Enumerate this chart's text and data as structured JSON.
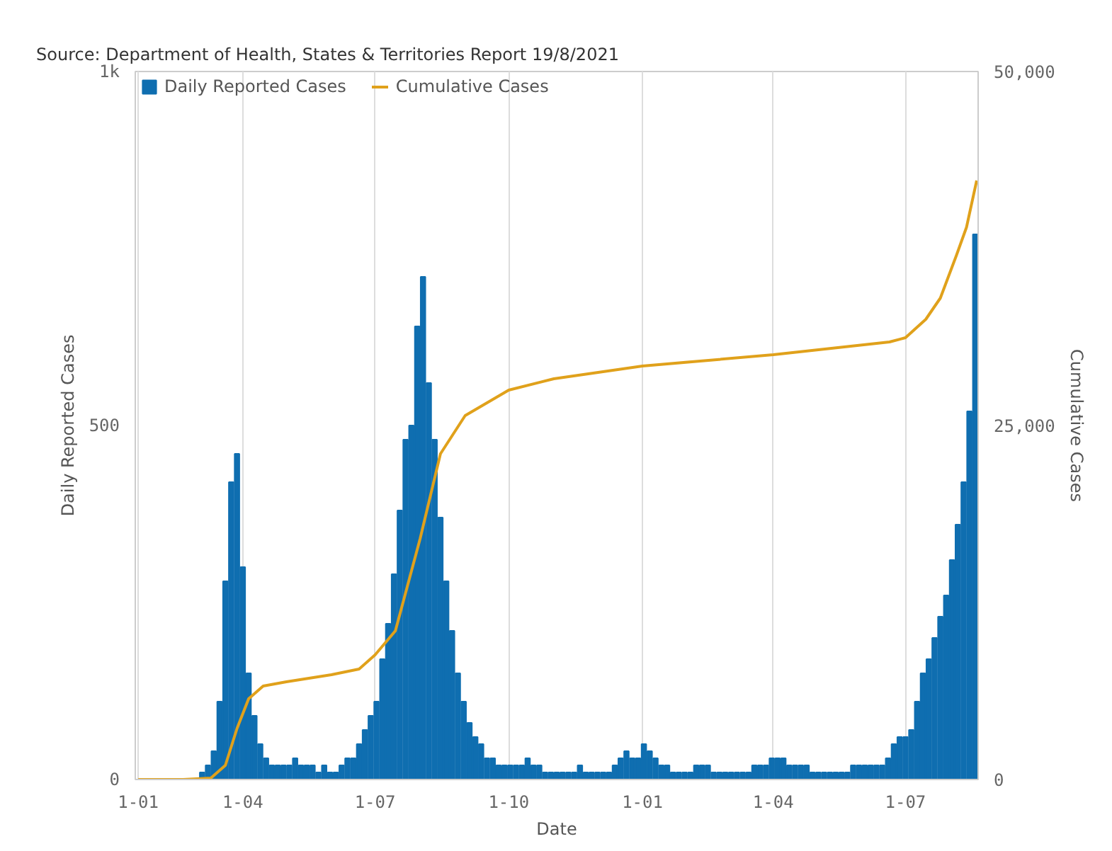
{
  "chart_data": {
    "type": "bar",
    "annotations": [
      "Source: Department of Health, States & Territories Report 19/8/2021"
    ],
    "xlabel": "Date",
    "ylabel": "Daily Reported Cases",
    "y2label": "Cumulative Cases",
    "xlim": [
      "2020-01-18",
      "2021-08-20"
    ],
    "xticks": [
      {
        "value": "2020-01-20",
        "label": "1-01"
      },
      {
        "value": "2020-04-01",
        "label": "1-04"
      },
      {
        "value": "2020-07-01",
        "label": "1-07"
      },
      {
        "value": "2020-10-01",
        "label": "1-10"
      },
      {
        "value": "2021-01-01",
        "label": "1-01"
      },
      {
        "value": "2021-04-01",
        "label": "1-04"
      },
      {
        "value": "2021-07-01",
        "label": "1-07"
      }
    ],
    "ylim": [
      0,
      1000
    ],
    "yticks": [
      0,
      500,
      {
        "value": 1000,
        "label": "1k"
      }
    ],
    "y2lim": [
      0,
      50000
    ],
    "y2ticks": [
      0,
      {
        "value": 25000,
        "label": "25,000"
      },
      {
        "value": 50000,
        "label": "50,000"
      }
    ],
    "grid": "x",
    "legend": "top left",
    "series": [
      {
        "name": "Daily Reported Cases",
        "color": "#0f6eb0",
        "x": [
          "2020-01-20",
          "2020-01-24",
          "2020-01-28",
          "2020-02-01",
          "2020-02-05",
          "2020-02-09",
          "2020-02-13",
          "2020-02-17",
          "2020-02-21",
          "2020-02-25",
          "2020-02-29",
          "2020-03-04",
          "2020-03-08",
          "2020-03-12",
          "2020-03-16",
          "2020-03-20",
          "2020-03-24",
          "2020-03-28",
          "2020-04-01",
          "2020-04-05",
          "2020-04-09",
          "2020-04-13",
          "2020-04-17",
          "2020-04-21",
          "2020-04-25",
          "2020-04-29",
          "2020-05-03",
          "2020-05-07",
          "2020-05-11",
          "2020-05-15",
          "2020-05-19",
          "2020-05-23",
          "2020-05-27",
          "2020-05-31",
          "2020-06-04",
          "2020-06-08",
          "2020-06-12",
          "2020-06-16",
          "2020-06-20",
          "2020-06-24",
          "2020-06-28",
          "2020-07-02",
          "2020-07-06",
          "2020-07-10",
          "2020-07-14",
          "2020-07-18",
          "2020-07-22",
          "2020-07-26",
          "2020-07-30",
          "2020-08-03",
          "2020-08-07",
          "2020-08-11",
          "2020-08-15",
          "2020-08-19",
          "2020-08-23",
          "2020-08-27",
          "2020-08-31",
          "2020-09-04",
          "2020-09-08",
          "2020-09-12",
          "2020-09-16",
          "2020-09-20",
          "2020-09-24",
          "2020-09-28",
          "2020-10-02",
          "2020-10-06",
          "2020-10-10",
          "2020-10-14",
          "2020-10-18",
          "2020-10-22",
          "2020-10-26",
          "2020-10-30",
          "2020-11-03",
          "2020-11-07",
          "2020-11-11",
          "2020-11-15",
          "2020-11-19",
          "2020-11-23",
          "2020-11-27",
          "2020-12-01",
          "2020-12-05",
          "2020-12-09",
          "2020-12-13",
          "2020-12-17",
          "2020-12-21",
          "2020-12-25",
          "2020-12-29",
          "2021-01-02",
          "2021-01-06",
          "2021-01-10",
          "2021-01-14",
          "2021-01-18",
          "2021-01-22",
          "2021-01-26",
          "2021-01-30",
          "2021-02-03",
          "2021-02-07",
          "2021-02-11",
          "2021-02-15",
          "2021-02-19",
          "2021-02-23",
          "2021-02-27",
          "2021-03-03",
          "2021-03-07",
          "2021-03-11",
          "2021-03-15",
          "2021-03-19",
          "2021-03-23",
          "2021-03-27",
          "2021-03-31",
          "2021-04-04",
          "2021-04-08",
          "2021-04-12",
          "2021-04-16",
          "2021-04-20",
          "2021-04-24",
          "2021-04-28",
          "2021-05-02",
          "2021-05-06",
          "2021-05-10",
          "2021-05-14",
          "2021-05-18",
          "2021-05-22",
          "2021-05-26",
          "2021-05-30",
          "2021-06-03",
          "2021-06-07",
          "2021-06-11",
          "2021-06-15",
          "2021-06-19",
          "2021-06-23",
          "2021-06-27",
          "2021-07-01",
          "2021-07-05",
          "2021-07-09",
          "2021-07-13",
          "2021-07-17",
          "2021-07-21",
          "2021-07-25",
          "2021-07-29",
          "2021-08-02",
          "2021-08-06",
          "2021-08-10",
          "2021-08-14",
          "2021-08-18"
        ],
        "values": [
          0,
          0,
          0,
          0,
          0,
          0,
          0,
          0,
          0,
          0,
          0,
          10,
          20,
          40,
          110,
          280,
          420,
          460,
          300,
          150,
          90,
          50,
          30,
          20,
          20,
          20,
          20,
          30,
          20,
          20,
          20,
          10,
          20,
          10,
          10,
          20,
          30,
          30,
          50,
          70,
          90,
          110,
          170,
          220,
          290,
          380,
          480,
          500,
          640,
          710,
          560,
          480,
          370,
          280,
          210,
          150,
          110,
          80,
          60,
          50,
          30,
          30,
          20,
          20,
          20,
          20,
          20,
          30,
          20,
          20,
          10,
          10,
          10,
          10,
          10,
          10,
          20,
          10,
          10,
          10,
          10,
          10,
          20,
          30,
          40,
          30,
          30,
          50,
          40,
          30,
          20,
          20,
          10,
          10,
          10,
          10,
          20,
          20,
          20,
          10,
          10,
          10,
          10,
          10,
          10,
          10,
          20,
          20,
          20,
          30,
          30,
          30,
          20,
          20,
          20,
          20,
          10,
          10,
          10,
          10,
          10,
          10,
          10,
          20,
          20,
          20,
          20,
          20,
          20,
          30,
          50,
          60,
          60,
          70,
          110,
          150,
          170,
          200,
          230,
          260,
          310,
          360,
          420,
          520,
          770
        ]
      },
      {
        "name": "Cumulative Cases",
        "type": "line",
        "axis": "y2",
        "color": "#e0a11b",
        "x": [
          "2020-01-20",
          "2020-02-20",
          "2020-03-10",
          "2020-03-20",
          "2020-03-28",
          "2020-04-05",
          "2020-04-15",
          "2020-05-01",
          "2020-06-01",
          "2020-06-20",
          "2020-07-01",
          "2020-07-15",
          "2020-08-01",
          "2020-08-15",
          "2020-09-01",
          "2020-10-01",
          "2020-11-01",
          "2021-01-01",
          "2021-04-01",
          "2021-06-20",
          "2021-07-01",
          "2021-07-15",
          "2021-07-25",
          "2021-08-05",
          "2021-08-12",
          "2021-08-19"
        ],
        "values": [
          0,
          0,
          100,
          1000,
          3600,
          5700,
          6600,
          6900,
          7400,
          7800,
          8800,
          10500,
          17000,
          23000,
          25700,
          27500,
          28300,
          29200,
          30000,
          30900,
          31200,
          32500,
          34000,
          37000,
          39000,
          42300
        ]
      }
    ]
  }
}
